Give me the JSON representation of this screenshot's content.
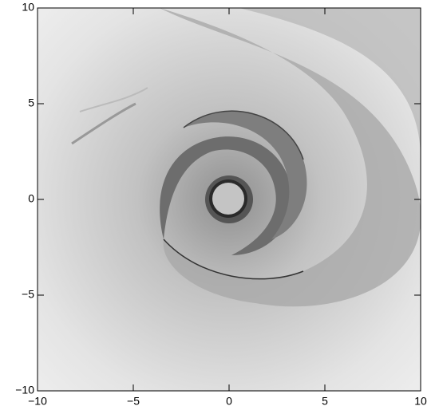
{
  "chart_data": {
    "type": "image",
    "xlim": [
      -10,
      10
    ],
    "ylim": [
      -10,
      10
    ],
    "xticks": [
      {
        "value": -10,
        "label": "−10"
      },
      {
        "value": -5,
        "label": "−5"
      },
      0,
      5,
      10
    ],
    "yticks": [
      {
        "value": -10,
        "label": "−10"
      },
      {
        "value": -5,
        "label": "−5"
      },
      0,
      5,
      10
    ]
  }
}
